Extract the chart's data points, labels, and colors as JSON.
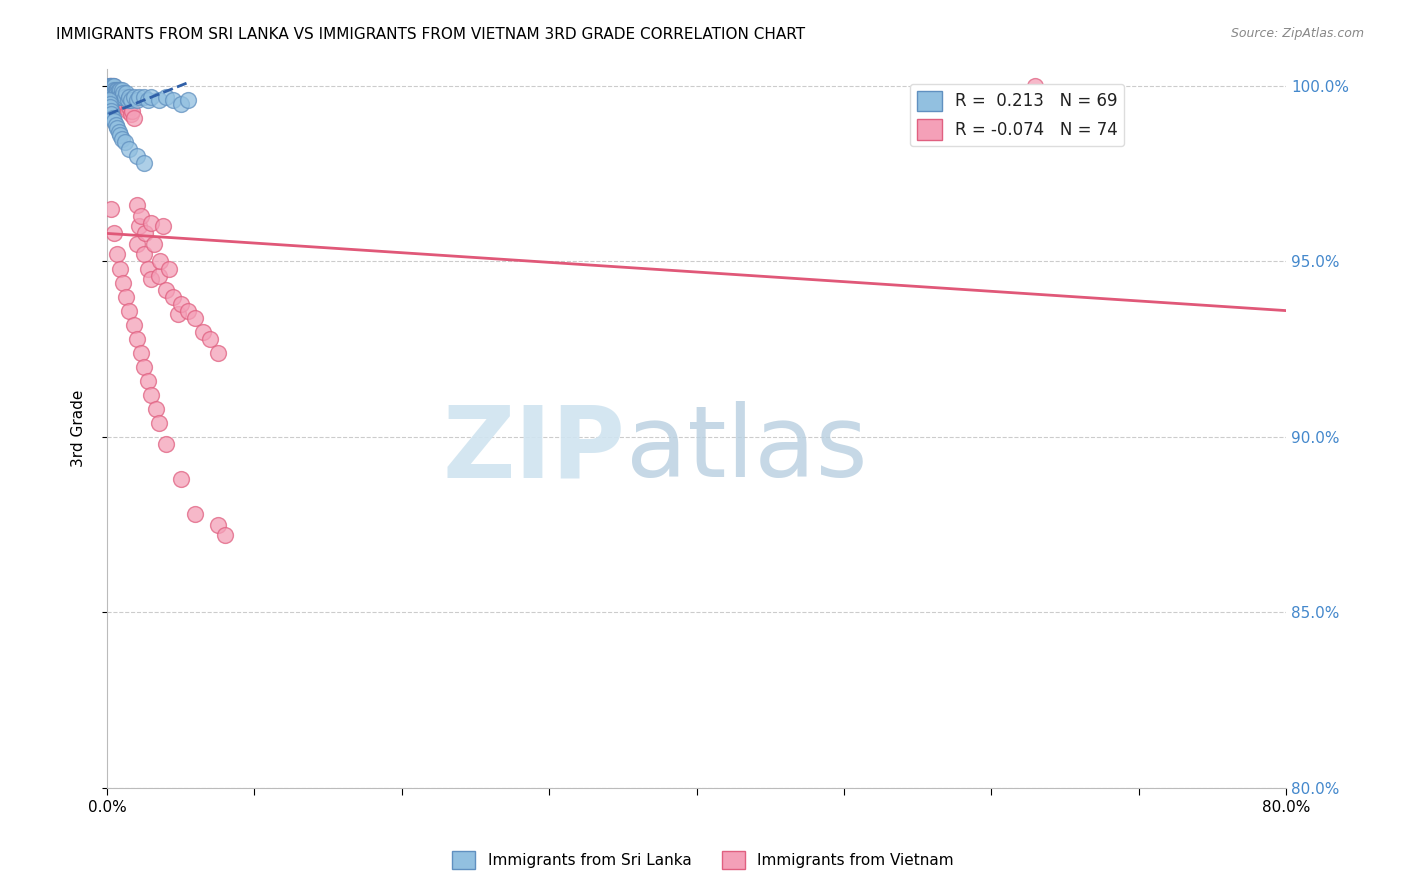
{
  "title": "IMMIGRANTS FROM SRI LANKA VS IMMIGRANTS FROM VIETNAM 3RD GRADE CORRELATION CHART",
  "source": "Source: ZipAtlas.com",
  "ylabel": "3rd Grade",
  "xlim": [
    0.0,
    0.8
  ],
  "ylim": [
    0.8,
    1.005
  ],
  "yticks": [
    0.8,
    0.85,
    0.9,
    0.95,
    1.0
  ],
  "ytick_labels": [
    "80.0%",
    "85.0%",
    "90.0%",
    "95.0%",
    "100.0%"
  ],
  "xticks": [
    0.0,
    0.1,
    0.2,
    0.3,
    0.4,
    0.5,
    0.6,
    0.7,
    0.8
  ],
  "xtick_labels": [
    "0.0%",
    "",
    "",
    "",
    "",
    "",
    "",
    "",
    "80.0%"
  ],
  "legend_r_sl": "R =  0.213",
  "legend_n_sl": "N = 69",
  "legend_r_vn": "R = -0.074",
  "legend_n_vn": "N = 74",
  "sri_lanka_color": "#92c0e0",
  "vietnam_color": "#f4a0b8",
  "sri_lanka_edge_color": "#6090c0",
  "vietnam_edge_color": "#e06080",
  "sri_lanka_line_color": "#3060a8",
  "vietnam_line_color": "#e05878",
  "watermark_zip_color": "#d0e4f0",
  "watermark_atlas_color": "#b8cfe0",
  "grid_color": "#cccccc",
  "right_axis_color": "#4488cc",
  "sl_x": [
    0.001,
    0.001,
    0.001,
    0.002,
    0.002,
    0.002,
    0.002,
    0.002,
    0.003,
    0.003,
    0.003,
    0.003,
    0.003,
    0.003,
    0.003,
    0.004,
    0.004,
    0.004,
    0.004,
    0.004,
    0.005,
    0.005,
    0.005,
    0.005,
    0.006,
    0.006,
    0.006,
    0.007,
    0.007,
    0.007,
    0.008,
    0.008,
    0.009,
    0.009,
    0.01,
    0.01,
    0.011,
    0.012,
    0.013,
    0.014,
    0.015,
    0.016,
    0.018,
    0.02,
    0.022,
    0.025,
    0.028,
    0.03,
    0.035,
    0.04,
    0.045,
    0.05,
    0.055,
    0.001,
    0.002,
    0.002,
    0.003,
    0.003,
    0.004,
    0.005,
    0.006,
    0.007,
    0.008,
    0.009,
    0.01,
    0.012,
    0.015,
    0.02,
    0.025
  ],
  "sl_y": [
    1.0,
    0.999,
    0.998,
    1.0,
    0.999,
    0.998,
    0.997,
    0.999,
    1.0,
    0.999,
    0.998,
    0.997,
    0.999,
    0.998,
    0.997,
    1.0,
    0.999,
    0.998,
    0.997,
    0.998,
    1.0,
    0.999,
    0.998,
    0.997,
    0.999,
    0.998,
    0.997,
    0.999,
    0.998,
    0.997,
    0.999,
    0.997,
    0.999,
    0.997,
    0.999,
    0.997,
    0.998,
    0.997,
    0.998,
    0.996,
    0.997,
    0.996,
    0.997,
    0.996,
    0.997,
    0.997,
    0.996,
    0.997,
    0.996,
    0.997,
    0.996,
    0.995,
    0.996,
    0.996,
    0.995,
    0.994,
    0.993,
    0.992,
    0.991,
    0.99,
    0.989,
    0.988,
    0.987,
    0.986,
    0.985,
    0.984,
    0.982,
    0.98,
    0.978
  ],
  "vn_x": [
    0.002,
    0.002,
    0.003,
    0.003,
    0.004,
    0.004,
    0.004,
    0.005,
    0.005,
    0.005,
    0.006,
    0.006,
    0.007,
    0.007,
    0.008,
    0.008,
    0.008,
    0.009,
    0.009,
    0.01,
    0.01,
    0.011,
    0.012,
    0.012,
    0.013,
    0.014,
    0.015,
    0.016,
    0.017,
    0.018,
    0.02,
    0.02,
    0.022,
    0.023,
    0.025,
    0.026,
    0.028,
    0.03,
    0.03,
    0.032,
    0.035,
    0.036,
    0.038,
    0.04,
    0.042,
    0.045,
    0.048,
    0.05,
    0.055,
    0.06,
    0.065,
    0.07,
    0.075,
    0.63,
    0.003,
    0.005,
    0.007,
    0.009,
    0.011,
    0.013,
    0.015,
    0.018,
    0.02,
    0.023,
    0.025,
    0.028,
    0.03,
    0.033,
    0.035,
    0.04,
    0.05,
    0.06,
    0.075,
    0.08
  ],
  "vn_y": [
    1.0,
    0.999,
    1.0,
    0.999,
    1.0,
    0.999,
    0.998,
    0.999,
    0.998,
    0.997,
    0.999,
    0.997,
    0.999,
    0.997,
    0.999,
    0.997,
    0.995,
    0.998,
    0.996,
    0.997,
    0.995,
    0.996,
    0.996,
    0.994,
    0.995,
    0.993,
    0.994,
    0.992,
    0.993,
    0.991,
    0.966,
    0.955,
    0.96,
    0.963,
    0.952,
    0.958,
    0.948,
    0.961,
    0.945,
    0.955,
    0.946,
    0.95,
    0.96,
    0.942,
    0.948,
    0.94,
    0.935,
    0.938,
    0.936,
    0.934,
    0.93,
    0.928,
    0.924,
    1.0,
    0.965,
    0.958,
    0.952,
    0.948,
    0.944,
    0.94,
    0.936,
    0.932,
    0.928,
    0.924,
    0.92,
    0.916,
    0.912,
    0.908,
    0.904,
    0.898,
    0.888,
    0.878,
    0.875,
    0.872
  ],
  "vn_line_x0": 0.0,
  "vn_line_x1": 0.8,
  "vn_line_y0": 0.958,
  "vn_line_y1": 0.936,
  "sl_line_x0": 0.001,
  "sl_line_x1": 0.055,
  "sl_line_y0": 0.992,
  "sl_line_y1": 1.001
}
